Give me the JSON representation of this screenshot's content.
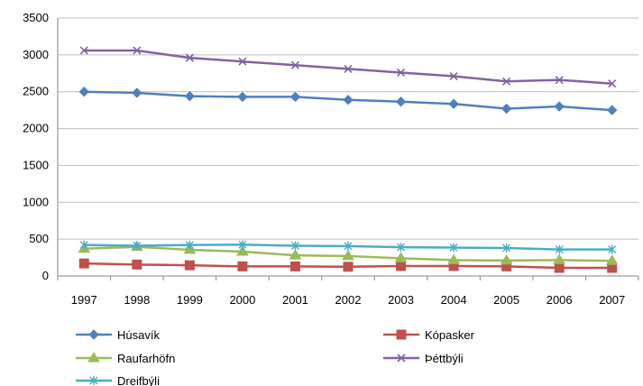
{
  "chart_data": {
    "type": "line",
    "title": "",
    "xlabel": "",
    "ylabel": "",
    "x": [
      "1997",
      "1998",
      "1999",
      "2000",
      "2001",
      "2002",
      "2003",
      "2004",
      "2005",
      "2006",
      "2007"
    ],
    "ylim": [
      0,
      3500
    ],
    "yticks": [
      0,
      500,
      1000,
      1500,
      2000,
      2500,
      3000,
      3500
    ],
    "grid": true,
    "legend_position": "bottom",
    "series": [
      {
        "name": "Húsavík",
        "color": "#4F81BD",
        "marker": "diamond",
        "values": [
          2500,
          2485,
          2440,
          2430,
          2430,
          2390,
          2365,
          2335,
          2270,
          2300,
          2250
        ]
      },
      {
        "name": "Kópasker",
        "color": "#C0504D",
        "marker": "square",
        "values": [
          170,
          155,
          145,
          130,
          130,
          125,
          135,
          135,
          130,
          110,
          110
        ]
      },
      {
        "name": "Raufarhöfn",
        "color": "#9BBB59",
        "marker": "triangle",
        "values": [
          370,
          395,
          355,
          330,
          280,
          270,
          240,
          215,
          210,
          215,
          205
        ]
      },
      {
        "name": "Þéttbýli",
        "color": "#8064A2",
        "marker": "x",
        "values": [
          3060,
          3060,
          2960,
          2910,
          2860,
          2810,
          2760,
          2710,
          2640,
          2660,
          2610
        ]
      },
      {
        "name": "Dreifbýli",
        "color": "#4BACC6",
        "marker": "asterisk",
        "values": [
          420,
          410,
          420,
          425,
          410,
          405,
          390,
          385,
          380,
          360,
          360
        ]
      }
    ]
  }
}
